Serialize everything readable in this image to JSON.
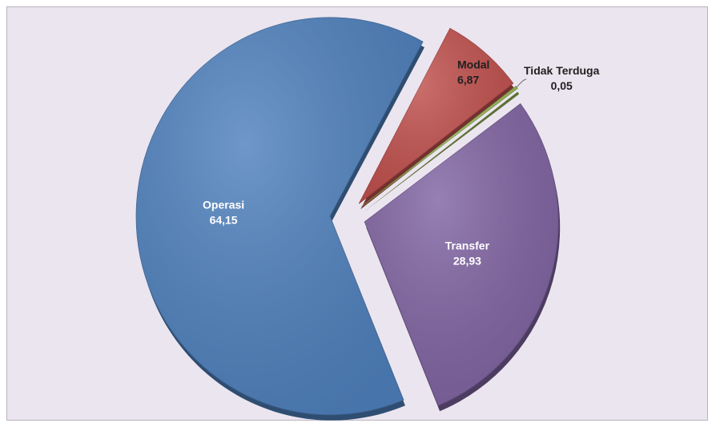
{
  "chart_data": {
    "type": "pie",
    "exploded": true,
    "three_d": true,
    "slices": [
      {
        "label": "Modal",
        "value": 6.87,
        "value_text": "6,87",
        "color": "#c0504d"
      },
      {
        "label": "Tidak Terduga",
        "value": 0.05,
        "value_text": "0,05",
        "color": "#9bbb59"
      },
      {
        "label": "Transfer",
        "value": 28.93,
        "value_text": "28,93",
        "color": "#8064a2"
      },
      {
        "label": "Operasi",
        "value": 64.15,
        "value_text": "64,15",
        "color": "#4f81bd"
      }
    ],
    "label_colors": {
      "inside": "#ffffff",
      "outside": "#1f1f1f"
    },
    "background": "#ebe5ef"
  }
}
